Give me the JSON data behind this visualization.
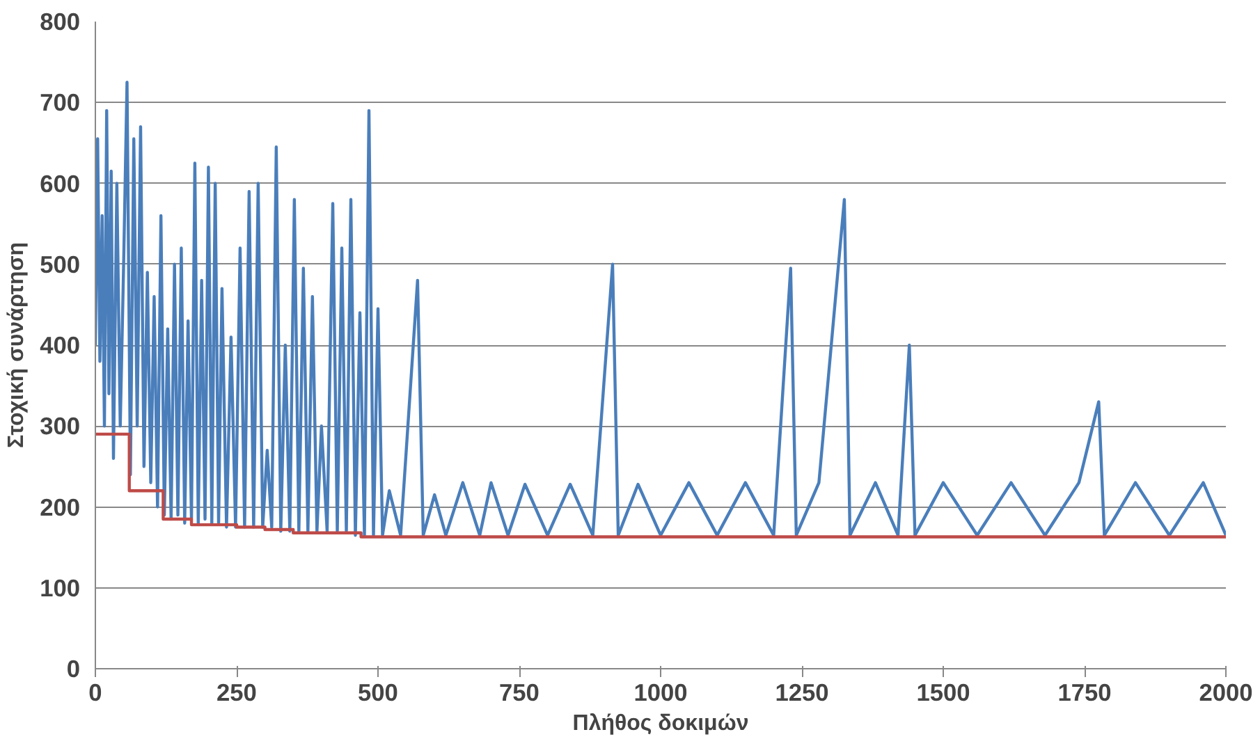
{
  "chart_data": {
    "type": "line",
    "xlabel": "Πλήθος δοκιμών",
    "ylabel": "Στοχική συνάρτηση",
    "xlim": [
      0,
      2000
    ],
    "ylim": [
      0,
      800
    ],
    "xticks": [
      0,
      250,
      500,
      750,
      1000,
      1250,
      1500,
      1750,
      2000
    ],
    "yticks": [
      0,
      100,
      200,
      300,
      400,
      500,
      600,
      700,
      800
    ],
    "grid": "y",
    "marker": "none",
    "line_style": "solid",
    "series": [
      {
        "color": "#4a7ebb",
        "x": [
          0,
          4,
          8,
          12,
          16,
          20,
          24,
          28,
          32,
          38,
          44,
          50,
          56,
          62,
          68,
          74,
          80,
          86,
          92,
          98,
          104,
          110,
          116,
          122,
          128,
          134,
          140,
          146,
          152,
          158,
          164,
          170,
          176,
          182,
          188,
          194,
          200,
          206,
          212,
          218,
          224,
          232,
          240,
          248,
          256,
          264,
          272,
          280,
          288,
          296,
          304,
          312,
          320,
          328,
          336,
          344,
          352,
          360,
          368,
          376,
          384,
          392,
          400,
          410,
          420,
          428,
          436,
          444,
          452,
          460,
          468,
          476,
          484,
          492,
          500,
          508,
          520,
          540,
          570,
          580,
          600,
          620,
          650,
          680,
          700,
          730,
          760,
          800,
          840,
          880,
          915,
          925,
          960,
          1000,
          1050,
          1100,
          1150,
          1200,
          1230,
          1240,
          1280,
          1325,
          1335,
          1380,
          1420,
          1440,
          1450,
          1500,
          1560,
          1620,
          1680,
          1740,
          1775,
          1785,
          1840,
          1900,
          1960,
          2000
        ],
        "values": [
          400,
          655,
          380,
          560,
          300,
          690,
          340,
          615,
          260,
          600,
          300,
          500,
          725,
          240,
          655,
          300,
          670,
          250,
          490,
          230,
          460,
          200,
          560,
          190,
          420,
          185,
          500,
          190,
          520,
          180,
          430,
          185,
          625,
          180,
          480,
          185,
          620,
          180,
          600,
          180,
          470,
          175,
          410,
          175,
          520,
          175,
          590,
          175,
          600,
          175,
          270,
          175,
          645,
          170,
          400,
          170,
          580,
          170,
          495,
          170,
          460,
          170,
          300,
          170,
          575,
          170,
          520,
          170,
          580,
          165,
          440,
          165,
          690,
          165,
          445,
          165,
          220,
          165,
          480,
          165,
          215,
          165,
          230,
          165,
          230,
          165,
          228,
          165,
          228,
          165,
          500,
          165,
          228,
          165,
          230,
          165,
          230,
          165,
          495,
          165,
          230,
          580,
          165,
          230,
          165,
          400,
          165,
          230,
          165,
          230,
          165,
          230,
          330,
          165,
          230,
          165,
          230,
          165
        ]
      },
      {
        "color": "#be4b48",
        "x": [
          0,
          60,
          60,
          120,
          120,
          170,
          170,
          250,
          250,
          300,
          300,
          350,
          350,
          470,
          470,
          2000
        ],
        "values": [
          290,
          290,
          220,
          220,
          185,
          185,
          178,
          178,
          175,
          175,
          172,
          172,
          168,
          168,
          163,
          163
        ]
      }
    ]
  }
}
